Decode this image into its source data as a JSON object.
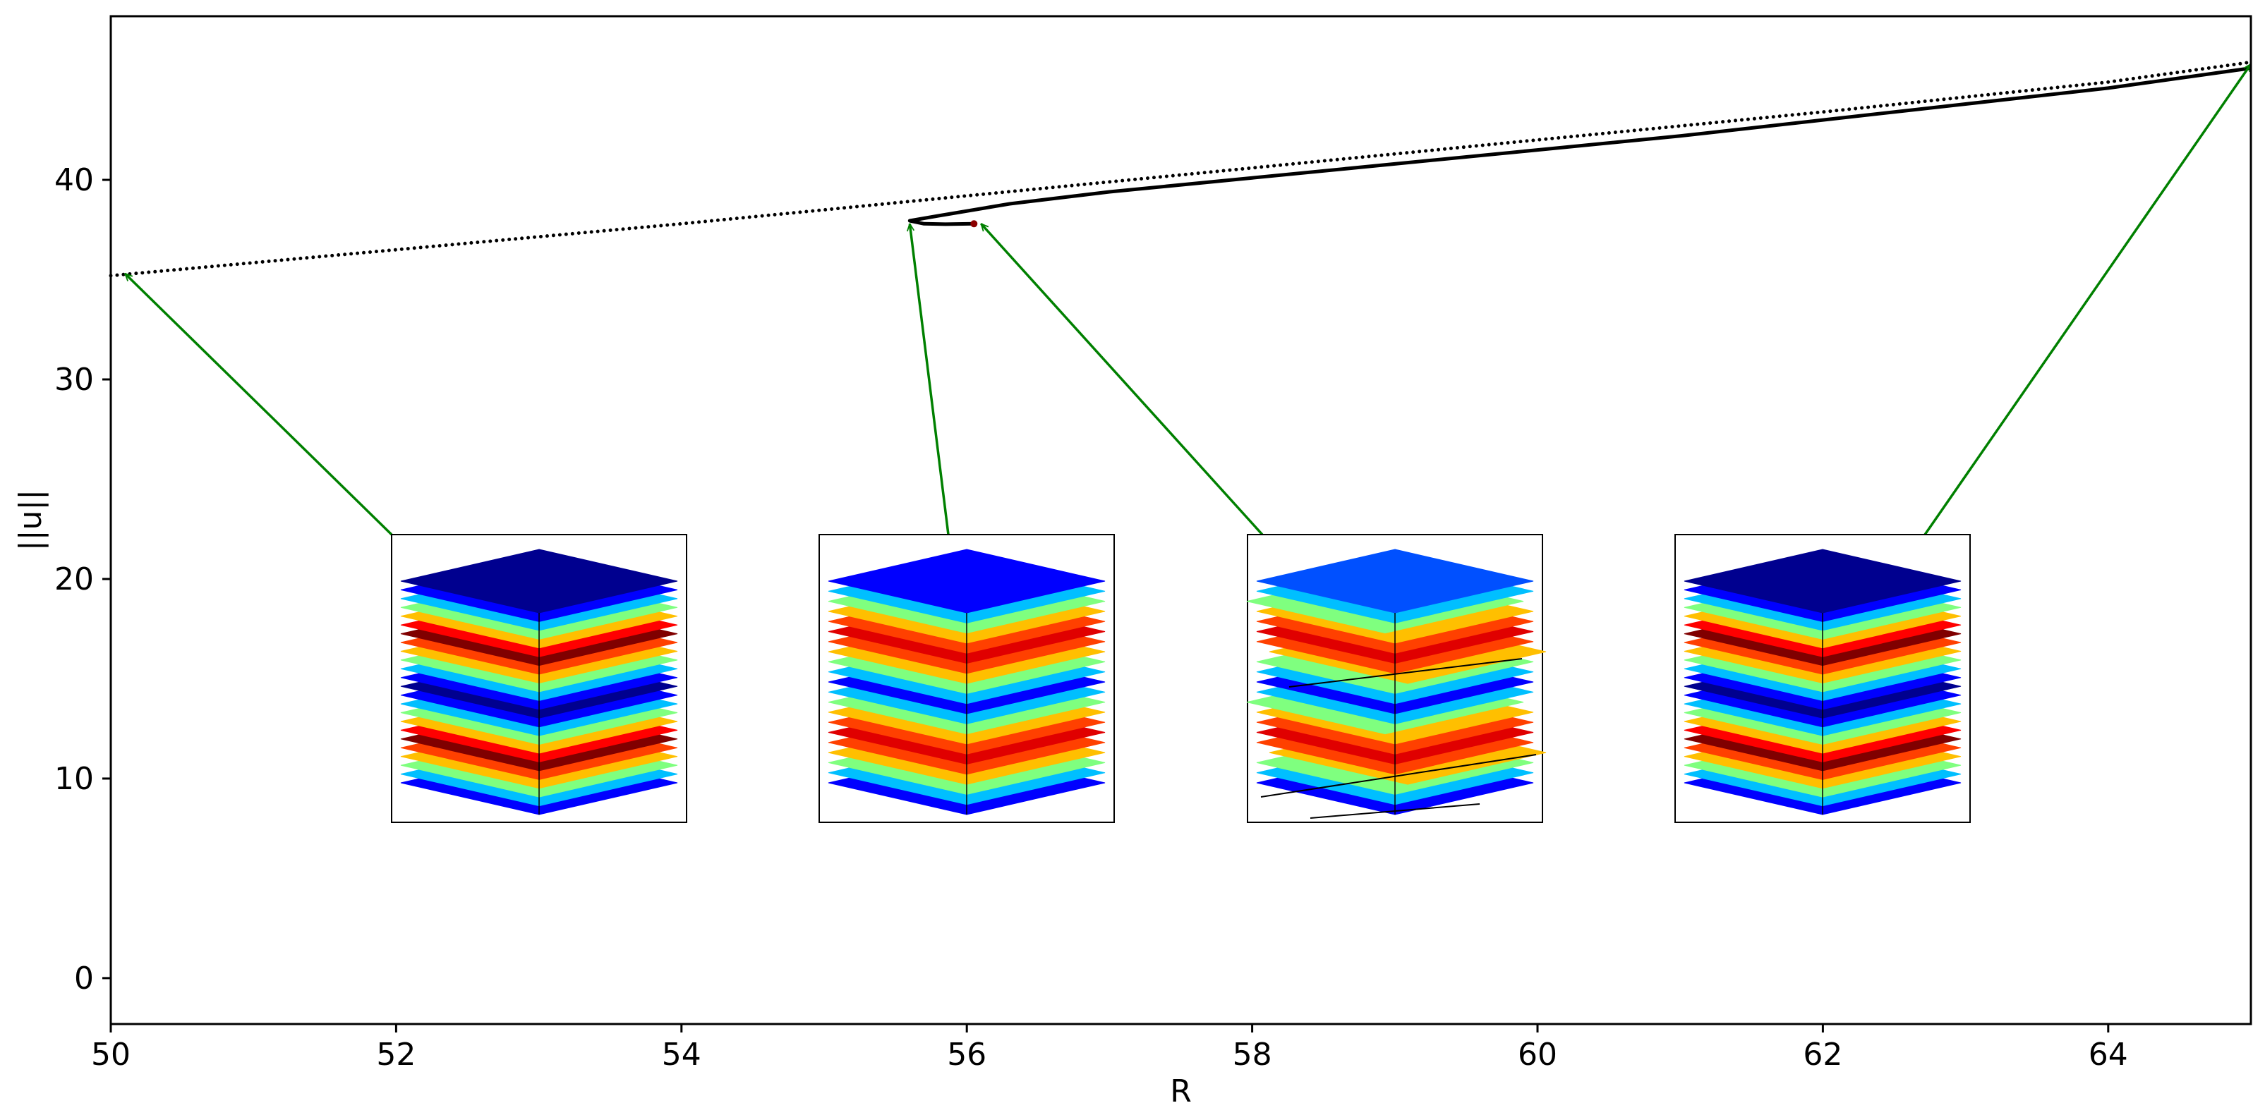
{
  "chart_data": {
    "type": "line",
    "xlabel": "R",
    "ylabel": "||u||",
    "xlim": [
      50,
      65
    ],
    "ylim": [
      -2.3,
      48.2
    ],
    "xticks": [
      50,
      52,
      54,
      56,
      58,
      60,
      62,
      64
    ],
    "yticks": [
      0,
      10,
      20,
      30,
      40
    ],
    "grid": false,
    "series": [
      {
        "style": "dotted",
        "color": "#000000",
        "points": [
          [
            50.0,
            35.2
          ],
          [
            52.0,
            36.5
          ],
          [
            54.0,
            37.8
          ],
          [
            56.0,
            39.2
          ],
          [
            58.0,
            40.6
          ],
          [
            60.0,
            42.0
          ],
          [
            62.0,
            43.4
          ],
          [
            64.0,
            44.9
          ],
          [
            65.0,
            45.9
          ]
        ]
      },
      {
        "style": "solid",
        "color": "#000000",
        "points": [
          [
            56.05,
            37.8
          ],
          [
            55.85,
            37.78
          ],
          [
            55.7,
            37.8
          ],
          [
            55.6,
            37.95
          ],
          [
            55.8,
            38.2
          ],
          [
            56.3,
            38.8
          ],
          [
            57.0,
            39.4
          ],
          [
            58.0,
            40.1
          ],
          [
            59.0,
            40.8
          ],
          [
            60.0,
            41.5
          ],
          [
            61.0,
            42.2
          ],
          [
            62.0,
            43.0
          ],
          [
            63.0,
            43.8
          ],
          [
            64.0,
            44.6
          ],
          [
            65.0,
            45.6
          ]
        ]
      }
    ],
    "annotations": [
      {
        "target": [
          50.1,
          35.3
        ],
        "inset": "inset-1",
        "color": "#008000"
      },
      {
        "target": [
          55.6,
          37.8
        ],
        "inset": "inset-2",
        "color": "#008000"
      },
      {
        "target": [
          56.1,
          37.8
        ],
        "inset": "inset-3",
        "color": "#008000"
      },
      {
        "target": [
          65.0,
          45.8
        ],
        "inset": "inset-4",
        "color": "#008000"
      }
    ],
    "insets": [
      {
        "id": "inset-1",
        "kind": "layered-cube",
        "bands": [
          "#00008f",
          "#0000ff",
          "#00bfff",
          "#7fff7f",
          "#ffbf00",
          "#ff0000",
          "#800000",
          "#ff4000",
          "#ffbf00",
          "#7fff7f",
          "#00bfff",
          "#0000ff",
          "#00008f",
          "#0000ff",
          "#00bfff",
          "#7fff7f",
          "#ffbf00",
          "#ff0000",
          "#800000",
          "#ff4000",
          "#ffbf00",
          "#7fff7f",
          "#00bfff",
          "#0000ff"
        ]
      },
      {
        "id": "inset-2",
        "kind": "layered-cube",
        "bands": [
          "#0000ff",
          "#00bfff",
          "#7fff7f",
          "#ffbf00",
          "#ff4000",
          "#e00000",
          "#ff4000",
          "#ffbf00",
          "#7fff7f",
          "#00bfff",
          "#0000ff",
          "#00bfff",
          "#7fff7f",
          "#ffbf00",
          "#ff4000",
          "#e00000",
          "#ff4000",
          "#ffbf00",
          "#7fff7f",
          "#00bfff",
          "#0000ff"
        ]
      },
      {
        "id": "inset-3",
        "kind": "layered-cube-distorted",
        "bands": [
          "#0050ff",
          "#00bfff",
          "#7fff7f",
          "#ffbf00",
          "#ff4000",
          "#e00000",
          "#ff4000",
          "#ffbf00",
          "#7fff7f",
          "#00bfff",
          "#0000ff",
          "#00bfff",
          "#7fff7f",
          "#ffbf00",
          "#ff4000",
          "#e00000",
          "#ff4000",
          "#ffbf00",
          "#7fff7f",
          "#00bfff",
          "#0000ff"
        ]
      },
      {
        "id": "inset-4",
        "kind": "layered-cube",
        "bands": [
          "#00008f",
          "#0000ff",
          "#00bfff",
          "#7fff7f",
          "#ffbf00",
          "#ff0000",
          "#800000",
          "#ff4000",
          "#ffbf00",
          "#7fff7f",
          "#00bfff",
          "#0000ff",
          "#00008f",
          "#0000ff",
          "#00bfff",
          "#7fff7f",
          "#ffbf00",
          "#ff0000",
          "#800000",
          "#ff4000",
          "#ffbf00",
          "#7fff7f",
          "#00bfff",
          "#0000ff"
        ]
      }
    ]
  }
}
